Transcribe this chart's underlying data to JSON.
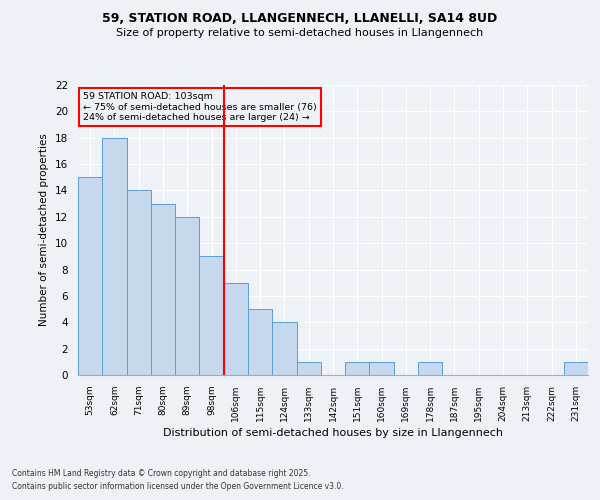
{
  "title1": "59, STATION ROAD, LLANGENNECH, LLANELLI, SA14 8UD",
  "title2": "Size of property relative to semi-detached houses in Llangennech",
  "xlabel": "Distribution of semi-detached houses by size in Llangennech",
  "ylabel": "Number of semi-detached properties",
  "categories": [
    "53sqm",
    "62sqm",
    "71sqm",
    "80sqm",
    "89sqm",
    "98sqm",
    "106sqm",
    "115sqm",
    "124sqm",
    "133sqm",
    "142sqm",
    "151sqm",
    "160sqm",
    "169sqm",
    "178sqm",
    "187sqm",
    "195sqm",
    "204sqm",
    "213sqm",
    "222sqm",
    "231sqm"
  ],
  "values": [
    15,
    18,
    14,
    13,
    12,
    9,
    7,
    5,
    4,
    1,
    0,
    1,
    1,
    0,
    1,
    0,
    0,
    0,
    0,
    0,
    1
  ],
  "bar_color": "#c5d8ed",
  "bar_edge_color": "#5a9fd4",
  "vline_x": 5.5,
  "vline_color": "red",
  "annotation_title": "59 STATION ROAD: 103sqm",
  "annotation_line1": "← 75% of semi-detached houses are smaller (76)",
  "annotation_line2": "24% of semi-detached houses are larger (24) →",
  "annotation_box_color": "red",
  "ylim": [
    0,
    22
  ],
  "yticks": [
    0,
    2,
    4,
    6,
    8,
    10,
    12,
    14,
    16,
    18,
    20,
    22
  ],
  "footnote1": "Contains HM Land Registry data © Crown copyright and database right 2025.",
  "footnote2": "Contains public sector information licensed under the Open Government Licence v3.0.",
  "bg_color": "#eef2f7",
  "grid_color": "#ffffff"
}
